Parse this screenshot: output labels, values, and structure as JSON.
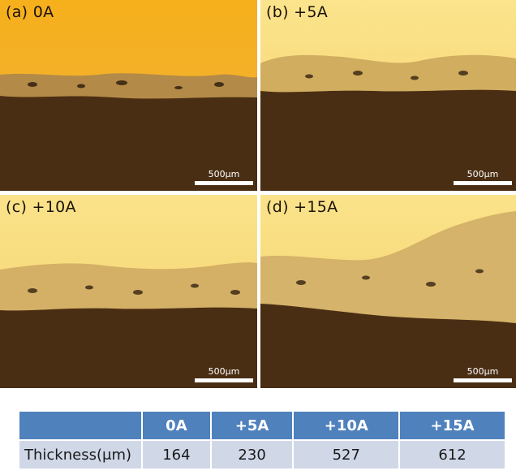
{
  "panels": [
    {
      "label": "(a) 0A",
      "scale": "500μm"
    },
    {
      "label": "(b) +5A",
      "scale": "500μm"
    },
    {
      "label": "(c) +10A",
      "scale": "500μm"
    },
    {
      "label": "(d) +15A",
      "scale": "500μm"
    }
  ],
  "colors": {
    "background_top": "#f2ac1a",
    "coating": "#caa45a",
    "substrate": "#4a2e14",
    "table_header": "#4f81bd",
    "table_cell": "#d0d8e8"
  },
  "table": {
    "headers": [
      "",
      "0A",
      "+5A",
      "+10A",
      "+15A"
    ],
    "row_label": "Thickness(μm)",
    "values": [
      "164",
      "230",
      "527",
      "612"
    ]
  }
}
